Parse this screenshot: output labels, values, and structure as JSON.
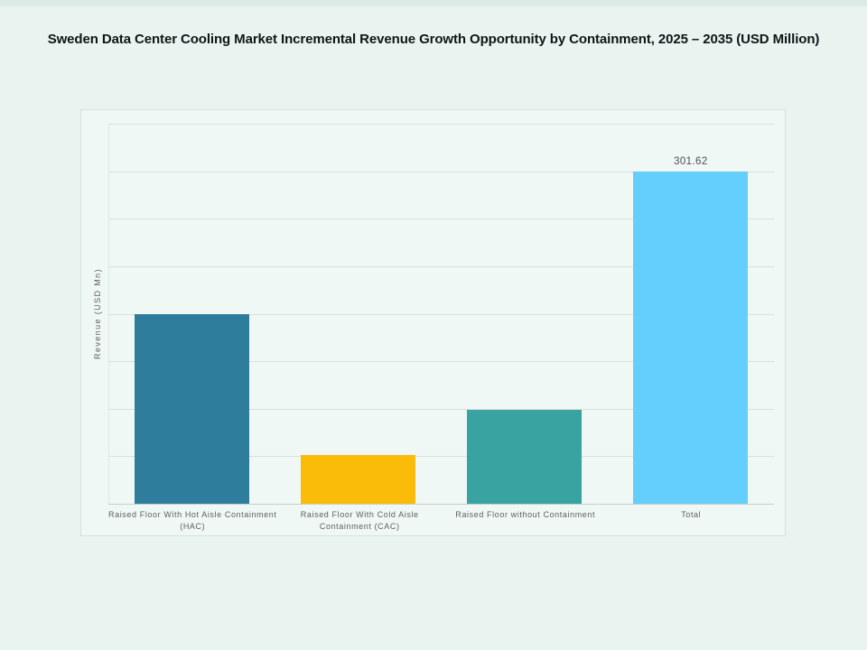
{
  "page": {
    "title": "Sweden Data Center Cooling Market Incremental Revenue Growth Opportunity by Containment, 2025 – 2035 (USD Million)"
  },
  "colors": {
    "page_bg": "#e9f4f1",
    "page_top_strip": "#dcebe7",
    "panel_bg": "#f0f8f6",
    "panel_border": "#d6e1de",
    "gridline": "#d9dfdd",
    "axis_line": "#c6cecc",
    "y_axis_line": "#dfe7e4",
    "title_text": "#111416",
    "tick_text": "#5b5f5e",
    "value_label_text": "#4c5051"
  },
  "chart_data": {
    "type": "bar",
    "title": "Sweden Data Center Cooling Market Incremental Revenue Growth Opportunity by Containment, 2025 – 2035 (USD Million)",
    "ylabel": "Revenue (USD Mn)",
    "xlabel": "",
    "categories": [
      "Raised Floor With Hot Aisle Containment (HAC)",
      "Raised Floor With Cold Aisle Containment (CAC)",
      "Raised Floor without Containment",
      "Total"
    ],
    "x_tick_lines": [
      [
        "Raised Floor With Hot Aisle Containment",
        "(HAC)"
      ],
      [
        "Raised Floor With Cold Aisle",
        "Containment (CAC)"
      ],
      [
        "Raised Floor without Containment"
      ],
      [
        "Total"
      ]
    ],
    "values": [
      172.0,
      44.0,
      85.62,
      301.62
    ],
    "value_labels": [
      "",
      "",
      "",
      "301.62"
    ],
    "bar_colors": [
      "#2f7d9d",
      "#fbbc09",
      "#38a3a0",
      "#63cffa"
    ],
    "ylim": [
      0,
      345
    ],
    "y_gridline_intervals": 8,
    "grid": true,
    "legend": false,
    "y_tick_labels": []
  }
}
